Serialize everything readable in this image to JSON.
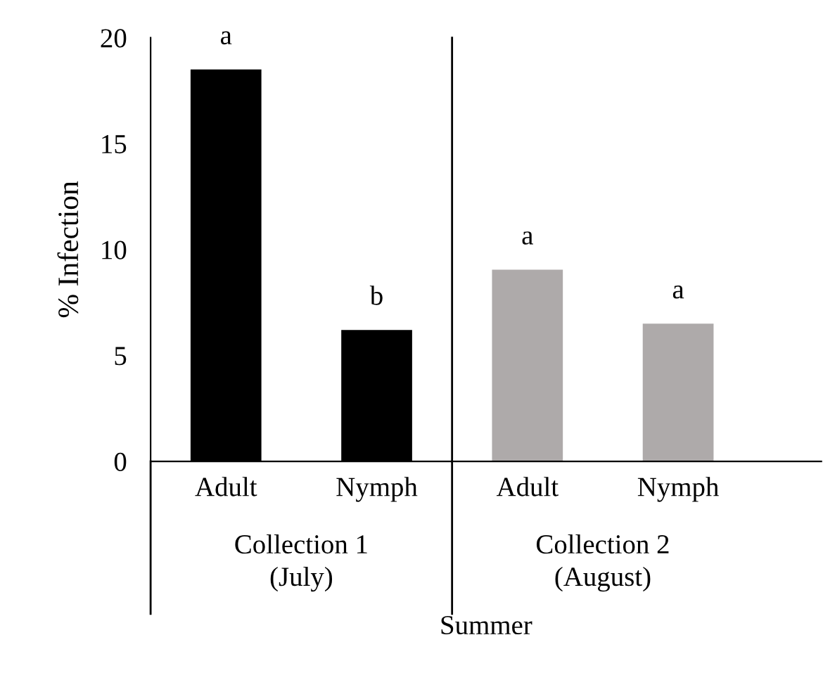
{
  "chart_data": {
    "type": "bar",
    "xlabel": "Summer",
    "ylabel": "% Infection",
    "categories": [
      "Adult",
      "Nymph",
      "Adult",
      "Nymph"
    ],
    "values": [
      18.5,
      6.2,
      9.05,
      6.5
    ],
    "colors": [
      "#000000",
      "#000000",
      "#aeaaaa",
      "#aeaaaa"
    ],
    "ylim": [
      0,
      20
    ],
    "yticks": [
      0,
      5,
      10,
      15,
      20
    ],
    "grid": false,
    "legend": false,
    "annotations": [
      "a",
      "b",
      "a",
      "a",
      "Collection 1\n(July)",
      "Collection 2\n(August)"
    ]
  }
}
